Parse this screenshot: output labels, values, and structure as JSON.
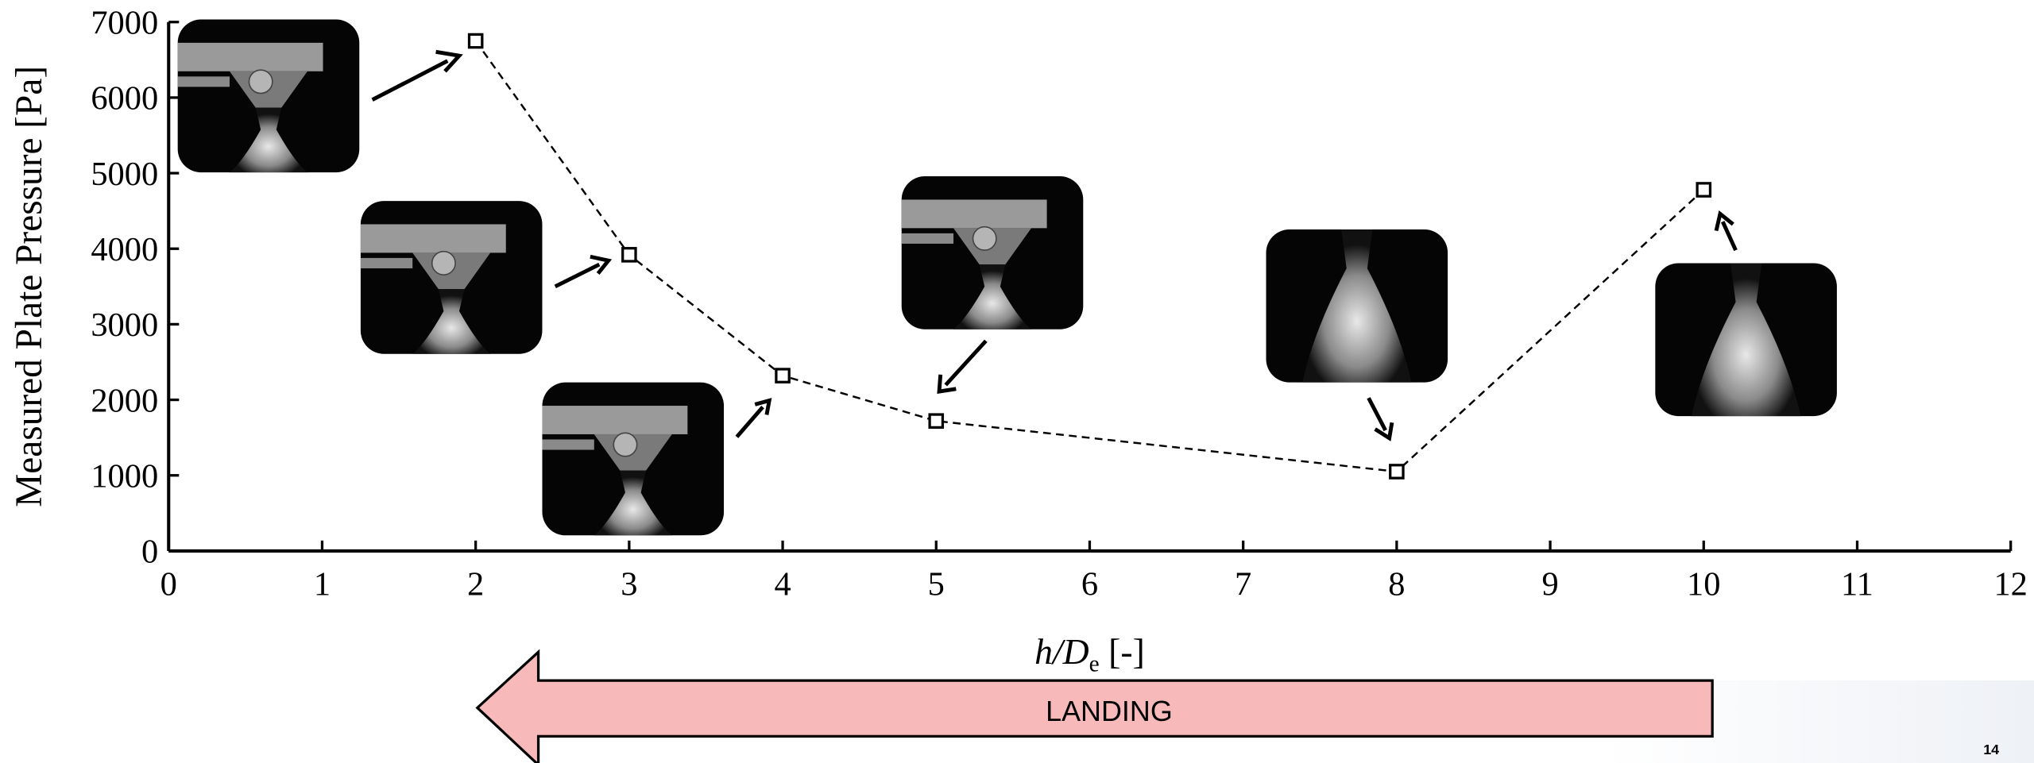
{
  "chart_data": {
    "type": "line",
    "y_label": "Measured Plate Pressure [Pa]",
    "x_label": [
      "h/D",
      "e",
      " [-]"
    ],
    "x": [
      2,
      3,
      4,
      5,
      8,
      10
    ],
    "series": [
      {
        "color": "#000000",
        "values": [
          6750,
          3920,
          2320,
          1720,
          1050,
          4780
        ]
      }
    ],
    "xlim": [
      0,
      12
    ],
    "xticks": [
      0,
      1,
      2,
      3,
      4,
      5,
      6,
      7,
      8,
      9,
      10,
      11,
      12
    ],
    "ylim": [
      0,
      7000
    ],
    "yticks": [
      0,
      1000,
      2000,
      3000,
      4000,
      5000,
      6000,
      7000
    ]
  },
  "banner": "LANDING",
  "page_number": "14"
}
